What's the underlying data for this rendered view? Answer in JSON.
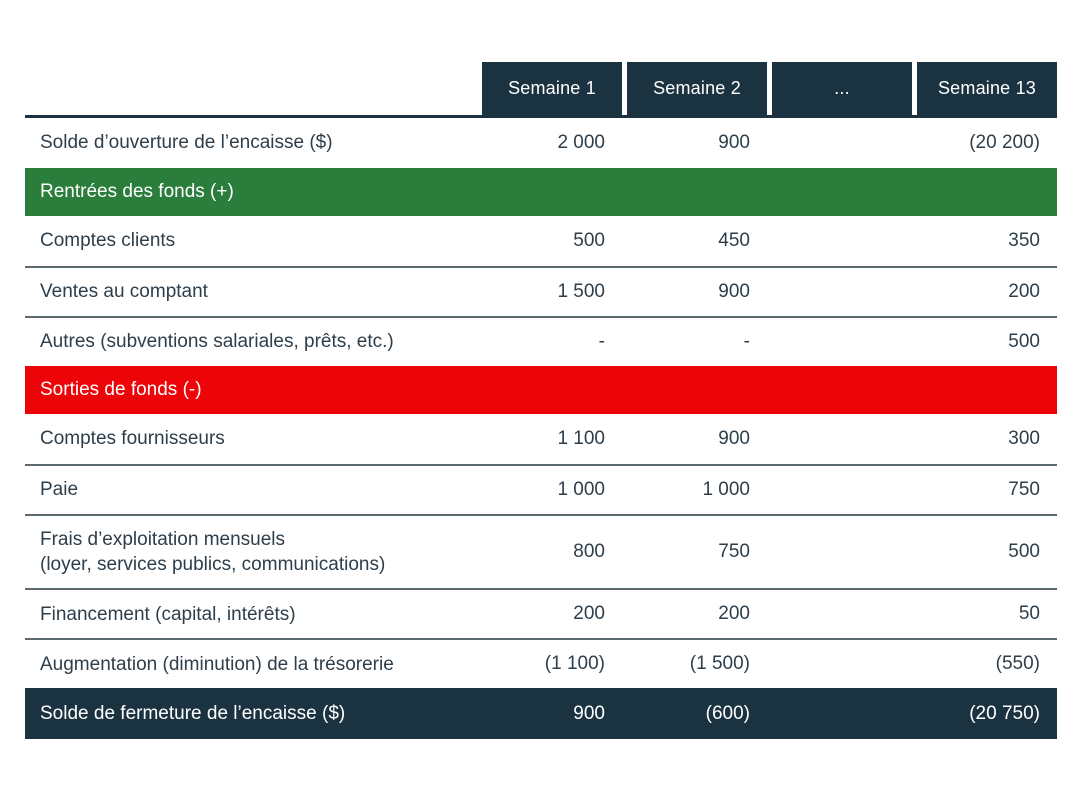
{
  "chart_data": {
    "type": "table",
    "columns": [
      "Semaine 1",
      "Semaine 2",
      "...",
      "Semaine 13"
    ],
    "rows": [
      {
        "label": "Solde d’ouverture de l’encaisse ($)",
        "kind": "data",
        "values": [
          "2 000",
          "900",
          "",
          "(20 200)"
        ]
      },
      {
        "label": "Rentrées des fonds (+)",
        "kind": "section_inflows"
      },
      {
        "label": "Comptes clients",
        "kind": "data",
        "values": [
          "500",
          "450",
          "",
          "350"
        ]
      },
      {
        "label": "Ventes au comptant",
        "kind": "data",
        "values": [
          "1 500",
          "900",
          "",
          "200"
        ]
      },
      {
        "label": "Autres (subventions salariales, prêts, etc.)",
        "kind": "data",
        "values": [
          "-",
          "-",
          "",
          "500"
        ]
      },
      {
        "label": "Sorties de fonds (-)",
        "kind": "section_outflows"
      },
      {
        "label": "Comptes fournisseurs",
        "kind": "data",
        "values": [
          "1 100",
          "900",
          "",
          "300"
        ]
      },
      {
        "label": "Paie",
        "kind": "data",
        "values": [
          "1 000",
          "1 000",
          "",
          "750"
        ]
      },
      {
        "label": "Frais d’exploitation mensuels",
        "label_line2": "(loyer, services publics, communications)",
        "kind": "data",
        "values": [
          "800",
          "750",
          "",
          "500"
        ]
      },
      {
        "label": "Financement (capital, intérêts)",
        "kind": "data",
        "values": [
          "200",
          "200",
          "",
          "50"
        ]
      },
      {
        "label": "Augmentation (diminution) de la trésorerie",
        "kind": "data",
        "values": [
          "(1 100)",
          "(1 500)",
          "",
          "(550)"
        ]
      },
      {
        "label": "Solde de fermeture de l’encaisse ($)",
        "kind": "total",
        "values": [
          "900",
          "(600)",
          "",
          "(20 750)"
        ]
      }
    ],
    "colors": {
      "header_bg": "#1b3341",
      "inflows_bg": "#2b7d3b",
      "outflows_bg": "#ec0408",
      "total_bg": "#1b3341",
      "text": "#2e3e4a",
      "divider": "#5e6a72",
      "header_text": "#ffffff"
    },
    "layout_hints": {
      "grid": "horizontal-dividers",
      "legend": "none",
      "value_alignment": "right"
    }
  }
}
